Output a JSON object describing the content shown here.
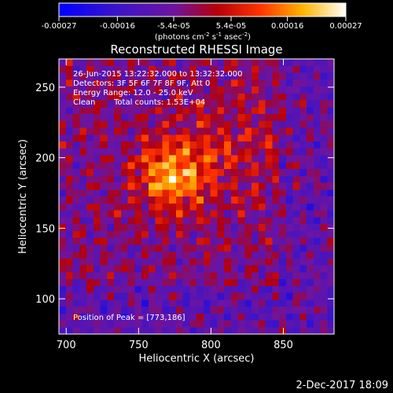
{
  "colorbar": {
    "ticks": [
      "-0.00027",
      "-0.00016",
      "-5.4e-05",
      "5.4e-05",
      "0.00016",
      "0.00027"
    ],
    "tick_values": [
      -0.00027,
      -0.00016,
      -5.4e-05,
      5.4e-05,
      0.00016,
      0.00027
    ],
    "range": [
      -0.00027,
      0.00027
    ],
    "unit_main": "(photons cm",
    "unit_exp1": "-2",
    "unit_mid": " s",
    "unit_exp2": "-1",
    "unit_end": " asec",
    "unit_exp3": "-2",
    "unit_close": ")"
  },
  "chart_data": {
    "type": "heatmap",
    "title": "Reconstructed RHESSI Image",
    "xlabel": "Heliocentric X (arcsec)",
    "ylabel": "Heliocentric Y (arcsec)",
    "xlim": [
      695,
      885
    ],
    "ylim": [
      75,
      270
    ],
    "x_ticks": [
      700,
      750,
      800,
      850
    ],
    "y_ticks": [
      100,
      150,
      200,
      250
    ],
    "peak_position": [
      773,
      186
    ],
    "colormap": "blue-purple-red-yellow-white",
    "colors": [
      "#0000ff",
      "#5a14b4",
      "#b4000a",
      "#ff5000",
      "#ffdc00",
      "#ffffff"
    ]
  },
  "annotations": {
    "line1": "26-Jun-2015 13:22:32.000 to 13:32:32.000",
    "line2": "Detectors: 3F 5F 6F 7F 8F 9F, Att 0",
    "line3": "Energy Range: 12.0 - 25.0 keV",
    "line4_label": "Clean",
    "line4_counts": "Total counts: 1.53E+04",
    "peak": "Position of Peak = [773,186]"
  },
  "footer": {
    "date": "2-Dec-2017 18:09"
  }
}
